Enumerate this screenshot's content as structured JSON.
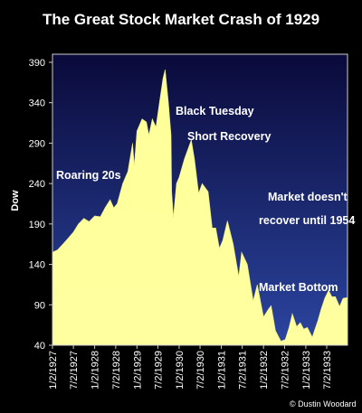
{
  "chart_data": {
    "type": "area",
    "title": "The Great Stock Market Crash of 1929",
    "ylabel": "Dow",
    "xlabel": "",
    "ylim": [
      40,
      400
    ],
    "yticks": [
      40,
      90,
      140,
      190,
      240,
      290,
      340,
      390
    ],
    "xlim": [
      "1/2/1927",
      "12/29/1933"
    ],
    "xticks": [
      "1/2/1927",
      "7/2/1927",
      "1/2/1928",
      "7/2/1928",
      "1/2/1929",
      "7/2/1929",
      "1/2/1930",
      "7/2/1930",
      "1/2/1931",
      "7/2/1931",
      "1/2/1932",
      "7/2/1932",
      "1/2/1933",
      "7/2/1933"
    ],
    "grid": false,
    "legend": "none",
    "colors": {
      "fill": "#ffffa0",
      "fill_top": "#ffff99",
      "background_top": "#0a0a3a",
      "background_bottom": "#2b45a0"
    },
    "series": [
      {
        "x": [
          "1927-01-02",
          "1927-02-15",
          "1927-04-01",
          "1927-05-15",
          "1927-07-02",
          "1927-08-15",
          "1927-10-01",
          "1927-11-15",
          "1928-01-02",
          "1928-02-20",
          "1928-04-01",
          "1928-05-15",
          "1928-06-15",
          "1928-07-15",
          "1928-09-01",
          "1928-10-15",
          "1928-11-25",
          "1928-12-10",
          "1929-01-02",
          "1929-02-15",
          "1929-03-25",
          "1929-04-15",
          "1929-05-15",
          "1929-06-15",
          "1929-07-20",
          "1929-08-15",
          "1929-09-03",
          "1929-10-01",
          "1929-10-24",
          "1929-10-29",
          "1929-11-13",
          "1929-12-10",
          "1930-01-02",
          "1930-02-15",
          "1930-04-17",
          "1930-05-15",
          "1930-06-20",
          "1930-07-20",
          "1930-09-10",
          "1930-10-15",
          "1930-11-15",
          "1930-12-16",
          "1931-01-15",
          "1931-02-24",
          "1931-04-15",
          "1931-06-02",
          "1931-06-27",
          "1931-08-15",
          "1931-10-05",
          "1931-11-09",
          "1932-01-02",
          "1932-02-15",
          "1932-03-08",
          "1932-04-15",
          "1932-06-01",
          "1932-07-08",
          "1932-08-10",
          "1932-09-07",
          "1932-10-15",
          "1932-11-15",
          "1932-12-15",
          "1933-01-15",
          "1933-02-27",
          "1933-03-15",
          "1933-04-15",
          "1933-05-15",
          "1933-06-15",
          "1933-07-18",
          "1933-08-15",
          "1933-09-15",
          "1933-10-21",
          "1933-11-20",
          "1933-12-29"
        ],
        "y": [
          155,
          158,
          165,
          172,
          180,
          190,
          197,
          193,
          200,
          199,
          210,
          220,
          210,
          215,
          240,
          255,
          290,
          262,
          305,
          320,
          316,
          300,
          320,
          310,
          345,
          370,
          381,
          340,
          300,
          230,
          198,
          240,
          248,
          270,
          294,
          270,
          228,
          240,
          230,
          185,
          185,
          160,
          170,
          194,
          165,
          125,
          155,
          140,
          95,
          115,
          75,
          85,
          89,
          58,
          45,
          47,
          62,
          79,
          63,
          68,
          60,
          62,
          50,
          57,
          70,
          85,
          98,
          108,
          100,
          100,
          88,
          98,
          99
        ]
      }
    ],
    "annotations": [
      "Roaring 20s",
      "Black Tuesday",
      "Short Recovery",
      "Market doesn't",
      "recover until 1954",
      "Market Bottom"
    ],
    "credit": "© Dustin Woodard"
  }
}
